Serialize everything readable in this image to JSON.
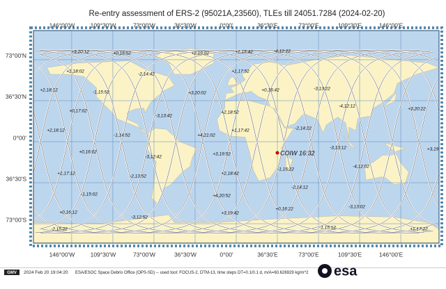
{
  "title": "Re-entry assessment of ERS-2 (95021A,23560), TLEs till 24051.7284 (2024-02-20)",
  "lon_labels": [
    "146°00'W",
    "109°30'W",
    "73°00'W",
    "36°30'W",
    "0°00'",
    "36°30'E",
    "73°00'E",
    "109°30'E",
    "146°00'E"
  ],
  "lat_labels": [
    "73°00'N",
    "36°30'N",
    "0°00'",
    "36°30'S",
    "73°00'S"
  ],
  "track_labels": [
    "+3,20:12",
    "+0,16:52",
    "+2,19:02",
    "+1,15:42",
    "-4,12:22",
    "+1,18:02",
    "-2,14:42",
    "+1,17:52",
    "+2,18:12",
    "-1,15:52",
    "+0,16:42",
    "-3,13:22",
    "+3,20:02",
    "+0,17:02",
    "-3,13:42",
    "+2,18:52",
    "-4,12:12",
    "+3,20:22",
    "+2,18:12",
    "-1,14:52",
    "+1,17:42",
    "-2,14:22",
    "+4,21:02",
    "+0,16:02",
    "-3,12:42",
    "+3,19:52",
    "-3,13:12",
    "+3,19:",
    "-1,15:22",
    "-4,12:02",
    "+1,17:12",
    "-2,13:52",
    "+2,18:42",
    "-2,14:12",
    "+4,20:52",
    "-1,15:02",
    "+0,16:12",
    "-3,12:52",
    "+3,19:42",
    "+0,16:22",
    "-3,13:02",
    "-2,15:22",
    "-1,15:12",
    "+1,17:22"
  ],
  "impact_label": "COIW 16:32",
  "footer": {
    "logo": "GMV",
    "timestamp": "2024 Feb 20 19:04:20",
    "credits": "ESA/ESOC Space Debris Office (OPS-SD) -- used tool: FOCUS-2, DTM-13, time steps DT=0.1/0.1 d, m/A=60.626929 kg/m^2",
    "brand": "esa"
  }
}
